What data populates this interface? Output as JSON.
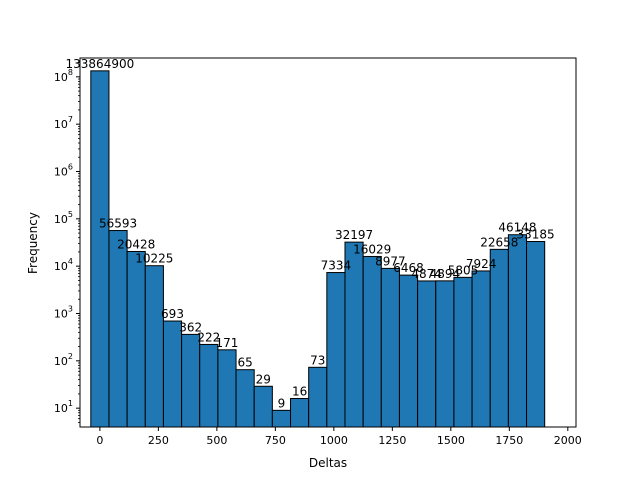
{
  "chart_data": {
    "type": "bar",
    "title": "",
    "xlabel": "Deltas",
    "ylabel": "Frequency",
    "y_scale": "log",
    "ylim": [
      4,
      250000000
    ],
    "xlim": [
      -85,
      2035
    ],
    "grid": false,
    "bar_color": "#1f77b4",
    "edge_color": "#000000",
    "bin_width": 77.6,
    "bin_starts": [
      -38.8,
      38.8,
      116.4,
      194.0,
      271.6,
      349.2,
      426.8,
      504.4,
      582.0,
      659.6,
      737.2,
      814.8,
      892.4,
      970.0,
      1047.6,
      1125.2,
      1202.8,
      1280.4,
      1358.0,
      1435.6,
      1513.2,
      1590.8,
      1668.4,
      1746.0,
      1823.6
    ],
    "values": [
      133864900,
      56593,
      20428,
      10225,
      693,
      362,
      222,
      171,
      65,
      29,
      9,
      16,
      73,
      7334,
      32197,
      16029,
      8977,
      6468,
      4874,
      4894,
      5805,
      7924,
      22658,
      46148,
      33185
    ],
    "data_labels": [
      "133864900",
      "56593",
      "20428",
      "10225",
      "693",
      "362",
      "222",
      "171",
      "65",
      "29",
      "9",
      "16",
      "73",
      "7334",
      "32197",
      "16029",
      "8977",
      "6468",
      "4874",
      "4894",
      "5805",
      "7924",
      "22658",
      "46148",
      "33185"
    ],
    "x_ticks": [
      0,
      250,
      500,
      750,
      1000,
      1250,
      1500,
      1750,
      2000
    ],
    "x_tick_labels": [
      "0",
      "250",
      "500",
      "750",
      "1000",
      "1250",
      "1500",
      "1750",
      "2000"
    ],
    "y_ticks": [
      10,
      100,
      1000,
      10000,
      100000,
      1000000,
      10000000,
      100000000
    ],
    "y_tick_bases": [
      "10",
      "10",
      "10",
      "10",
      "10",
      "10",
      "10",
      "10"
    ],
    "y_tick_exponents": [
      "1",
      "2",
      "3",
      "4",
      "5",
      "6",
      "7",
      "8"
    ]
  }
}
